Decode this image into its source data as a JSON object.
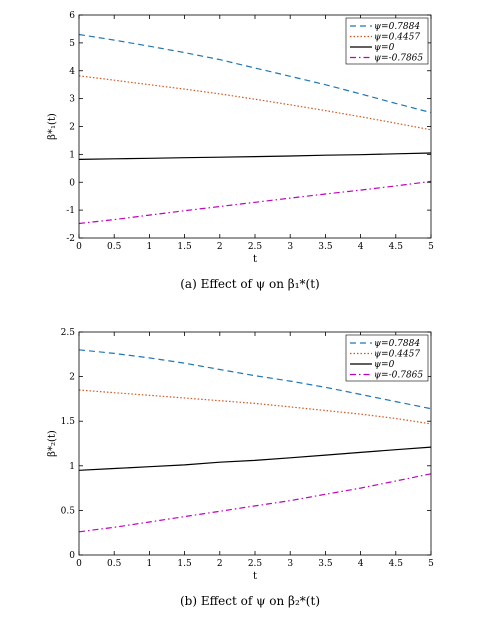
{
  "chart_data": [
    {
      "type": "line",
      "caption_text": "(a) Effect of ψ on β₁*(t)",
      "xlabel": "t",
      "ylabel": "β*₁(t)",
      "xlim": [
        0,
        5
      ],
      "ylim": [
        -2,
        6
      ],
      "xticks": [
        0,
        0.5,
        1,
        1.5,
        2,
        2.5,
        3,
        3.5,
        4,
        4.5,
        5
      ],
      "xtick_labels": [
        "0",
        "0.5",
        "1",
        "1.5",
        "2",
        "2.5",
        "3",
        "3.5",
        "4",
        "4.5",
        "5"
      ],
      "yticks": [
        -2,
        -1,
        0,
        1,
        2,
        3,
        4,
        5,
        6
      ],
      "ytick_labels": [
        "-2",
        "-1",
        "0",
        "1",
        "2",
        "3",
        "4",
        "5",
        "6"
      ],
      "legend_position": "top-right",
      "x": [
        0,
        0.5,
        1,
        1.5,
        2,
        2.5,
        3,
        3.5,
        4,
        4.5,
        5
      ],
      "series": [
        {
          "name": "ψ=0.7884",
          "color": "#1f77b4",
          "dash": "dashed",
          "values": [
            5.3,
            5.1,
            4.88,
            4.65,
            4.4,
            4.1,
            3.8,
            3.5,
            3.17,
            2.83,
            2.5
          ]
        },
        {
          "name": "ψ=0.4457",
          "color": "#d95319",
          "dash": "dotted",
          "values": [
            3.82,
            3.66,
            3.5,
            3.34,
            3.17,
            2.98,
            2.78,
            2.57,
            2.35,
            2.12,
            1.88
          ]
        },
        {
          "name": "ψ=0",
          "color": "#000000",
          "dash": "solid",
          "values": [
            0.82,
            0.84,
            0.86,
            0.88,
            0.9,
            0.92,
            0.94,
            0.97,
            0.99,
            1.02,
            1.05
          ]
        },
        {
          "name": "ψ=-0.7865",
          "color": "#c000c0",
          "dash": "dashdot",
          "values": [
            -1.48,
            -1.34,
            -1.18,
            -1.02,
            -0.87,
            -0.72,
            -0.57,
            -0.42,
            -0.28,
            -0.13,
            0.03
          ]
        }
      ]
    },
    {
      "type": "line",
      "caption_text": "(b) Effect of ψ on β₂*(t)",
      "xlabel": "t",
      "ylabel": "β*₂(t)",
      "xlim": [
        0,
        5
      ],
      "ylim": [
        0,
        2.5
      ],
      "xticks": [
        0,
        0.5,
        1,
        1.5,
        2,
        2.5,
        3,
        3.5,
        4,
        4.5,
        5
      ],
      "xtick_labels": [
        "0",
        "0.5",
        "1",
        "1.5",
        "2",
        "2.5",
        "3",
        "3.5",
        "4",
        "4.5",
        "5"
      ],
      "yticks": [
        0,
        0.5,
        1,
        1.5,
        2,
        2.5
      ],
      "ytick_labels": [
        "0",
        "0.5",
        "1",
        "1.5",
        "2",
        "2.5"
      ],
      "legend_position": "top-right",
      "x": [
        0,
        0.5,
        1,
        1.5,
        2,
        2.5,
        3,
        3.5,
        4,
        4.5,
        5
      ],
      "series": [
        {
          "name": "ψ=0.7884",
          "color": "#1f77b4",
          "dash": "dashed",
          "values": [
            2.3,
            2.26,
            2.21,
            2.15,
            2.08,
            2.01,
            1.95,
            1.88,
            1.8,
            1.72,
            1.64
          ]
        },
        {
          "name": "ψ=0.4457",
          "color": "#d95319",
          "dash": "dotted",
          "values": [
            1.85,
            1.82,
            1.79,
            1.76,
            1.73,
            1.7,
            1.66,
            1.62,
            1.58,
            1.53,
            1.47
          ]
        },
        {
          "name": "ψ=0",
          "color": "#000000",
          "dash": "solid",
          "values": [
            0.95,
            0.97,
            0.99,
            1.01,
            1.04,
            1.06,
            1.09,
            1.12,
            1.15,
            1.18,
            1.21
          ]
        },
        {
          "name": "ψ=-0.7865",
          "color": "#c000c0",
          "dash": "dashdot",
          "values": [
            0.26,
            0.31,
            0.37,
            0.43,
            0.49,
            0.55,
            0.61,
            0.68,
            0.75,
            0.83,
            0.91
          ]
        }
      ]
    }
  ]
}
